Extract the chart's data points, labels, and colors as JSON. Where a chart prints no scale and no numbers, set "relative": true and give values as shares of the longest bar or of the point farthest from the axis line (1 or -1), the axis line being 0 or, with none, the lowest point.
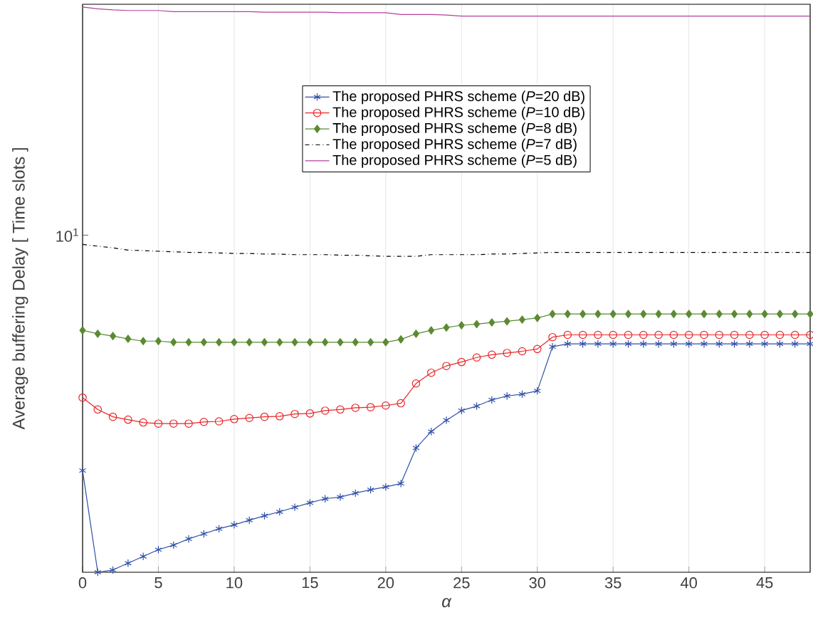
{
  "chart_data": {
    "type": "line",
    "xlabel": "α",
    "ylabel": "Average buffering Delay [ Time slots ]",
    "relative": true,
    "annotations": [
      "10$^{1}$"
    ],
    "x": [
      0,
      1,
      2,
      3,
      4,
      5,
      6,
      7,
      8,
      9,
      10,
      11,
      12,
      13,
      14,
      15,
      16,
      17,
      18,
      19,
      20,
      21,
      22,
      23,
      24,
      25,
      26,
      27,
      28,
      29,
      30,
      31,
      32,
      33,
      34,
      35,
      36,
      37,
      38,
      39,
      40,
      41,
      42,
      43,
      44,
      45,
      46,
      47,
      48
    ],
    "xlim": [
      0,
      48
    ],
    "xticks": [
      0,
      5,
      10,
      15,
      20,
      25,
      30,
      35,
      40,
      45
    ],
    "grid": "x",
    "legend": "top",
    "series": [
      {
        "name": "The proposed PHRS scheme (*P*=20 dB)",
        "color": "#3050a8",
        "marker": "cross",
        "line_style": "solid",
        "values": [
          0.18,
          0,
          0.004,
          0.016,
          0.028,
          0.04,
          0.048,
          0.059,
          0.068,
          0.077,
          0.084,
          0.092,
          0.1,
          0.107,
          0.115,
          0.123,
          0.13,
          0.133,
          0.14,
          0.146,
          0.151,
          0.157,
          0.22,
          0.249,
          0.269,
          0.286,
          0.294,
          0.305,
          0.312,
          0.315,
          0.321,
          0.399,
          0.404,
          0.404,
          0.404,
          0.404,
          0.404,
          0.404,
          0.404,
          0.404,
          0.404,
          0.404,
          0.404,
          0.404,
          0.404,
          0.404,
          0.404,
          0.404,
          0.404
        ]
      },
      {
        "name": "The proposed PHRS scheme (*P*=10 dB)",
        "color": "#e8262a",
        "marker": "circle",
        "line_style": "solid",
        "values": [
          0.309,
          0.288,
          0.275,
          0.27,
          0.265,
          0.263,
          0.263,
          0.263,
          0.266,
          0.267,
          0.271,
          0.273,
          0.275,
          0.276,
          0.28,
          0.281,
          0.286,
          0.288,
          0.291,
          0.292,
          0.295,
          0.299,
          0.334,
          0.353,
          0.365,
          0.372,
          0.38,
          0.385,
          0.388,
          0.391,
          0.395,
          0.416,
          0.42,
          0.42,
          0.42,
          0.42,
          0.42,
          0.42,
          0.42,
          0.42,
          0.42,
          0.42,
          0.42,
          0.42,
          0.42,
          0.42,
          0.42,
          0.42,
          0.42
        ]
      },
      {
        "name": "The proposed PHRS scheme (*P*=8 dB)",
        "color": "#5b8a32",
        "marker": "diamond",
        "line_style": "solid",
        "values": [
          0.428,
          0.422,
          0.418,
          0.413,
          0.409,
          0.409,
          0.407,
          0.407,
          0.407,
          0.407,
          0.407,
          0.407,
          0.407,
          0.407,
          0.407,
          0.407,
          0.407,
          0.407,
          0.407,
          0.407,
          0.407,
          0.412,
          0.422,
          0.428,
          0.433,
          0.437,
          0.439,
          0.442,
          0.444,
          0.447,
          0.45,
          0.457,
          0.457,
          0.457,
          0.457,
          0.457,
          0.457,
          0.457,
          0.457,
          0.457,
          0.457,
          0.457,
          0.457,
          0.457,
          0.457,
          0.457,
          0.457,
          0.457,
          0.457
        ]
      },
      {
        "name": "The proposed PHRS scheme (*P*=7 dB)",
        "color": "#000000",
        "marker": "none",
        "line_style": "dashdot",
        "values": [
          0.58,
          0.577,
          0.574,
          0.57,
          0.569,
          0.568,
          0.567,
          0.566,
          0.566,
          0.565,
          0.564,
          0.564,
          0.563,
          0.563,
          0.562,
          0.562,
          0.562,
          0.561,
          0.561,
          0.56,
          0.559,
          0.559,
          0.559,
          0.562,
          0.562,
          0.562,
          0.562,
          0.563,
          0.563,
          0.564,
          0.565,
          0.566,
          0.566,
          0.566,
          0.566,
          0.566,
          0.566,
          0.566,
          0.566,
          0.566,
          0.566,
          0.566,
          0.566,
          0.566,
          0.566,
          0.566,
          0.566,
          0.566,
          0.566
        ]
      },
      {
        "name": "The proposed PHRS scheme (*P*=5 dB)",
        "color": "#b3409b",
        "marker": "none",
        "line_style": "solid",
        "values": [
          1,
          0.997,
          0.995,
          0.994,
          0.994,
          0.994,
          0.992,
          0.992,
          0.992,
          0.992,
          0.992,
          0.992,
          0.991,
          0.991,
          0.991,
          0.991,
          0.991,
          0.99,
          0.99,
          0.99,
          0.99,
          0.987,
          0.987,
          0.987,
          0.986,
          0.984,
          0.984,
          0.984,
          0.984,
          0.984,
          0.984,
          0.984,
          0.984,
          0.984,
          0.984,
          0.984,
          0.984,
          0.984,
          0.984,
          0.984,
          0.984,
          0.984,
          0.984,
          0.984,
          0.984,
          0.984,
          0.984,
          0.984,
          0.984
        ]
      }
    ]
  }
}
